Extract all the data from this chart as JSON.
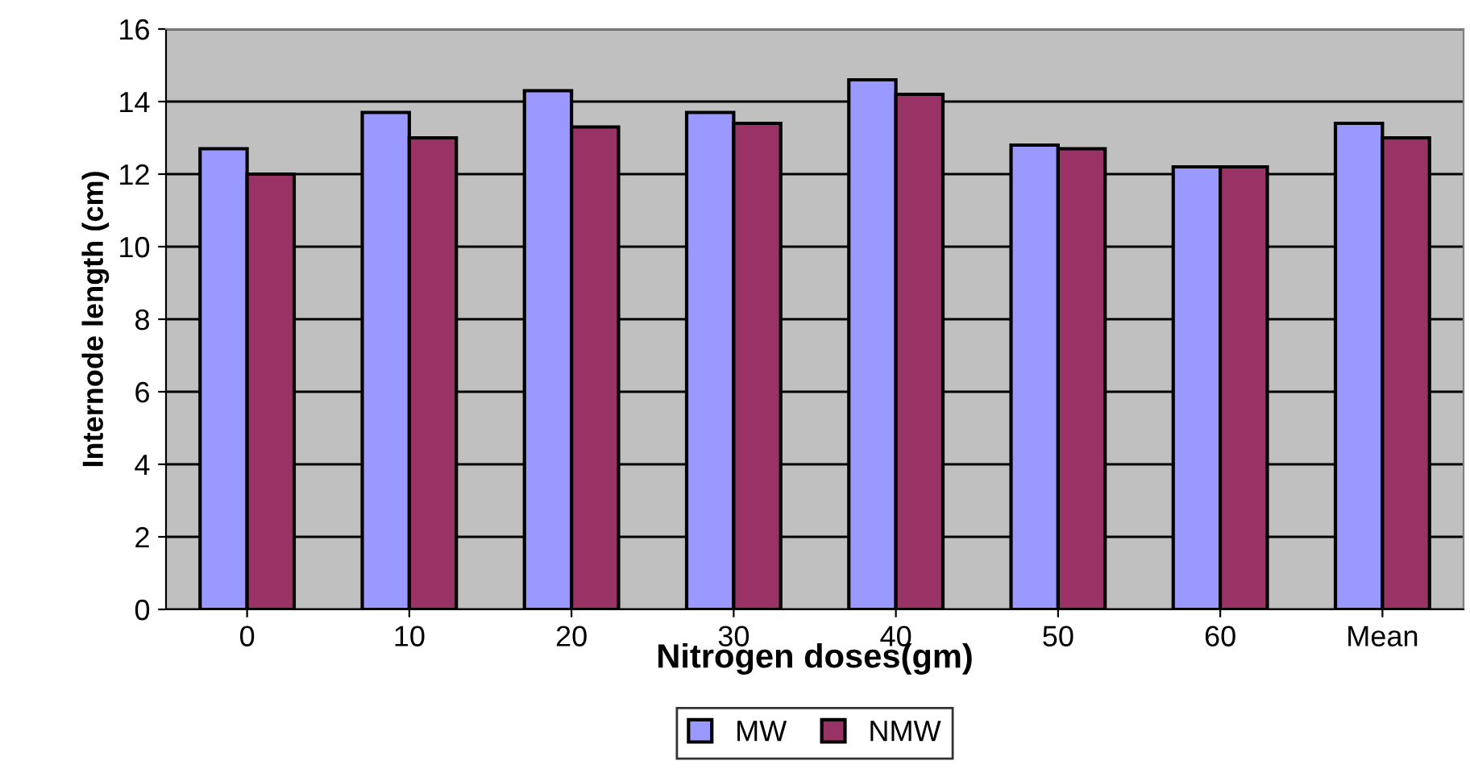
{
  "chart_data": {
    "type": "bar",
    "xlabel": "Nitrogen doses(gm)",
    "ylabel": "Internode length (cm)",
    "categories": [
      "0",
      "10",
      "20",
      "30",
      "40",
      "50",
      "60",
      "Mean"
    ],
    "series": [
      {
        "name": "MW",
        "color": "#9999ff",
        "values": [
          12.7,
          13.7,
          14.3,
          13.7,
          14.6,
          12.8,
          12.2,
          13.4
        ]
      },
      {
        "name": "NMW",
        "color": "#993366",
        "values": [
          12.0,
          13.0,
          13.3,
          13.4,
          14.2,
          12.7,
          12.2,
          13.0
        ]
      }
    ],
    "ylim": [
      0,
      16
    ],
    "yticks": [
      0,
      2,
      4,
      6,
      8,
      10,
      12,
      14,
      16
    ],
    "grid": "y",
    "legend": "bottom"
  }
}
